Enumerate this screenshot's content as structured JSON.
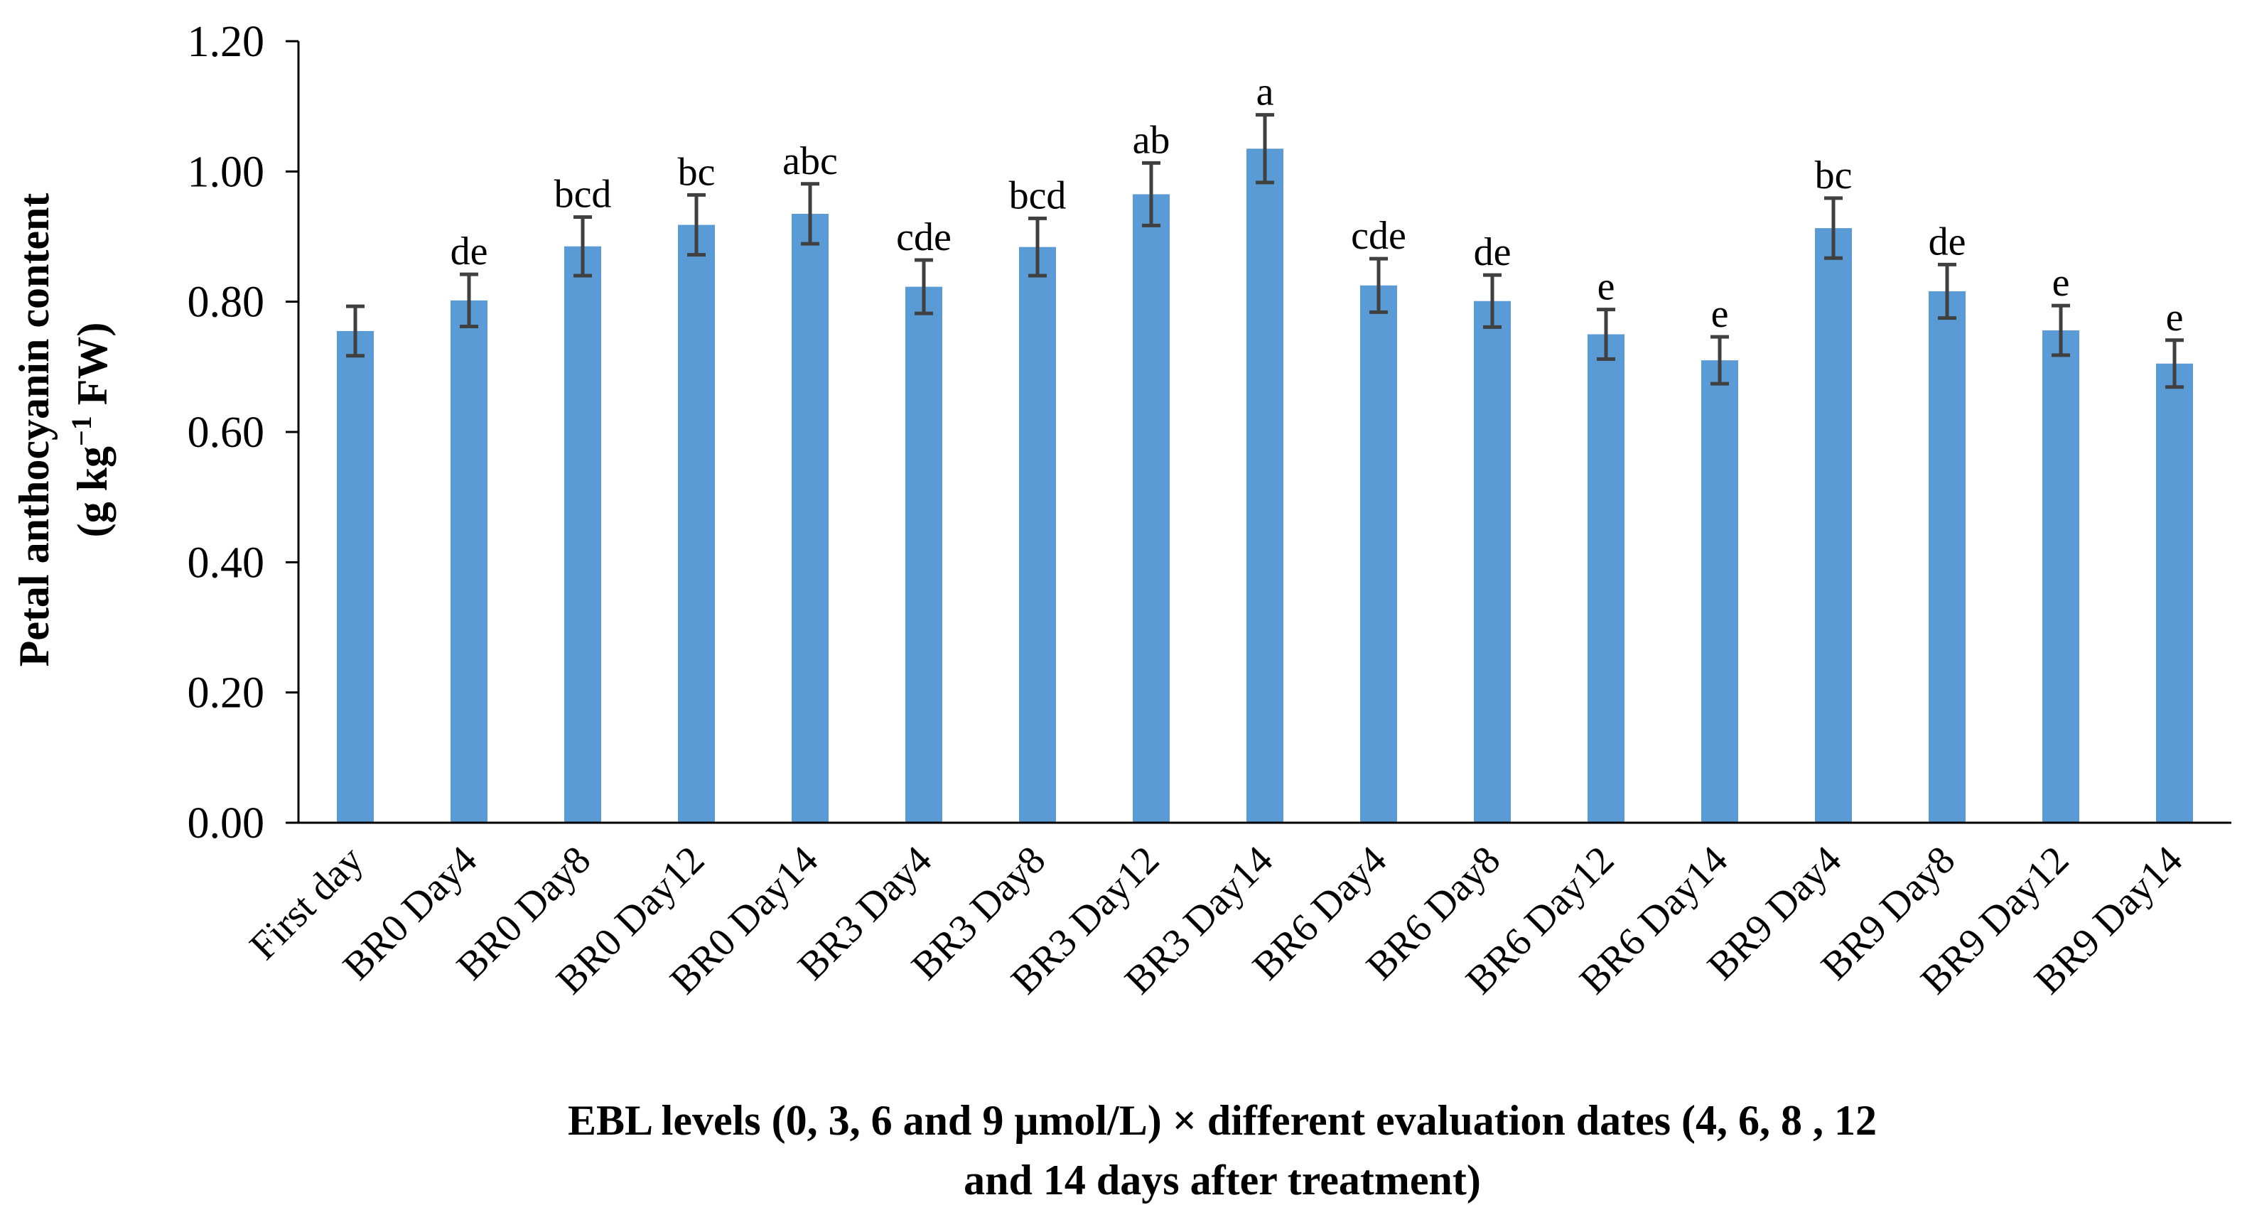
{
  "chart_data": {
    "type": "bar",
    "title": "",
    "ylabel_line1": "Petal anthocyanin content",
    "ylabel_line2_prefix": "(g kg",
    "ylabel_line2_sup": "−1",
    "ylabel_line2_suffix": " FW)",
    "xlabel_line1": "EBL levels (0, 3, 6 and 9 μmol/L) × different evaluation dates (4, 6, 8 , 12",
    "xlabel_line2": "and 14 days after treatment)",
    "ylim": [
      0,
      1.2
    ],
    "yticks": [
      "0.00",
      "0.20",
      "0.40",
      "0.60",
      "0.80",
      "1.00",
      "1.20"
    ],
    "grid": false,
    "bar_color": "#5b9bd5",
    "categories": [
      "First day",
      "BR0 Day4",
      "BR0 Day8",
      "BR0 Day12",
      "BR0 Day14",
      "BR3 Day4",
      "BR3 Day8",
      "BR3 Day12",
      "BR3 Day14",
      "BR6 Day4",
      "BR6 Day8",
      "BR6 Day12",
      "BR6 Day14",
      "BR9 Day4",
      "BR9 Day8",
      "BR9 Day12",
      "BR9 Day14"
    ],
    "values": [
      0.755,
      0.802,
      0.885,
      0.918,
      0.935,
      0.823,
      0.884,
      0.965,
      1.035,
      0.825,
      0.801,
      0.75,
      0.71,
      0.913,
      0.816,
      0.756,
      0.705
    ],
    "errors": [
      0.038,
      0.04,
      0.045,
      0.046,
      0.046,
      0.041,
      0.044,
      0.048,
      0.052,
      0.041,
      0.04,
      0.038,
      0.036,
      0.046,
      0.041,
      0.038,
      0.036
    ],
    "significance": [
      "",
      "de",
      "bcd",
      "bc",
      "abc",
      "cde",
      "bcd",
      "ab",
      "a",
      "cde",
      "de",
      "e",
      "e",
      "bc",
      "de",
      "e",
      "e"
    ]
  }
}
